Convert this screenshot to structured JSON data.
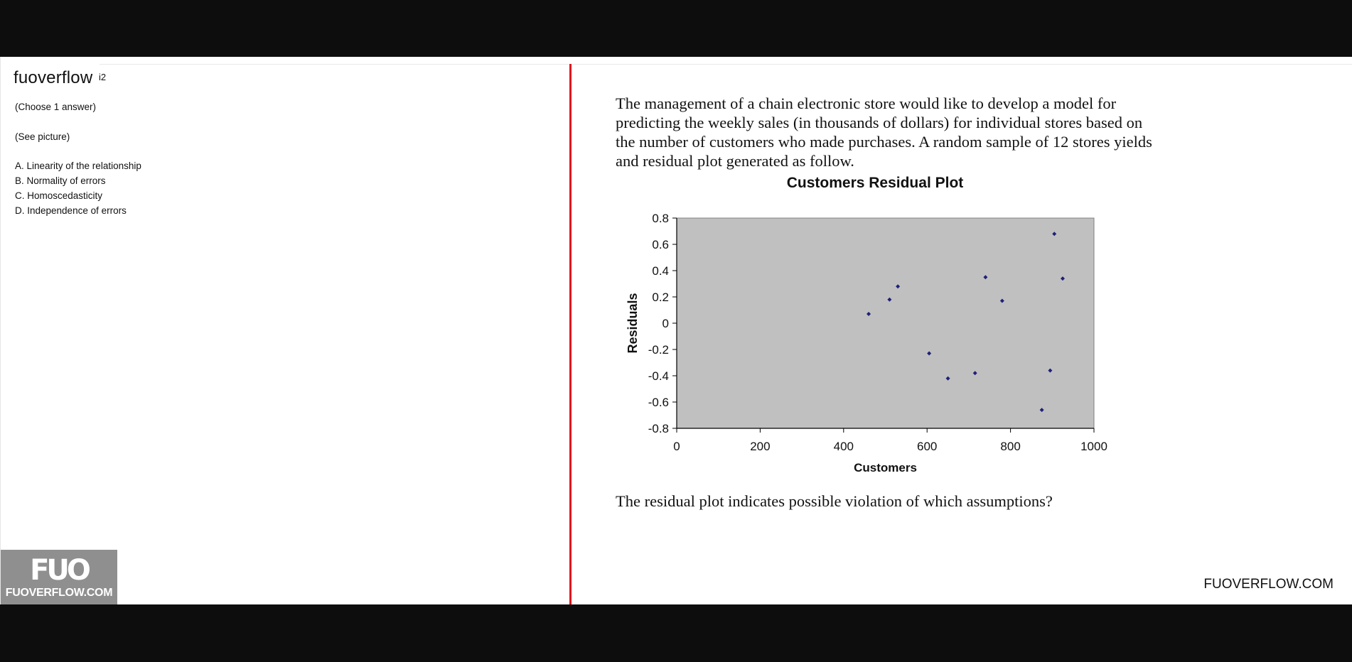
{
  "site": {
    "name": "fuoverflow",
    "suffix": "i2"
  },
  "left": {
    "instruction": "(Choose 1 answer)",
    "see_picture": "(See picture)",
    "options": [
      "A. Linearity of the relationship",
      "B. Normality of errors",
      "C. Homoscedasticity",
      "D. Independence of errors"
    ]
  },
  "right": {
    "intro": "The management of a chain electronic store would like to develop a model for predicting the weekly sales (in thousands of dollars) for individual stores based on the number of customers who made purchases. A random sample of 12 stores yields and residual plot generated as follow.",
    "question": "The residual plot indicates possible violation of which assumptions?"
  },
  "logo": {
    "mark": "FUO",
    "text": "FUOVERFLOW.COM"
  },
  "watermark": "FUOVERFLOW.COM",
  "colors": {
    "divider": "#e0141c",
    "plot_area": "#c0c0c0",
    "marker": "#1f1f7a",
    "logo_bg": "#8f8f8f"
  },
  "chart_data": {
    "type": "scatter",
    "title": "Customers  Residual Plot",
    "xlabel": "Customers",
    "ylabel": "Residuals",
    "xlim": [
      0,
      1000
    ],
    "ylim": [
      -0.8,
      0.8
    ],
    "xticks": [
      "0",
      "200",
      "400",
      "600",
      "800",
      "1000"
    ],
    "yticks": [
      "0.8",
      "0.6",
      "0.4",
      "0.2",
      "0",
      "-0.2",
      "-0.4",
      "-0.6",
      "-0.8"
    ],
    "grid": false,
    "points": [
      {
        "x": 460,
        "y": 0.07
      },
      {
        "x": 510,
        "y": 0.18
      },
      {
        "x": 530,
        "y": 0.28
      },
      {
        "x": 605,
        "y": -0.23
      },
      {
        "x": 650,
        "y": -0.42
      },
      {
        "x": 715,
        "y": -0.38
      },
      {
        "x": 740,
        "y": 0.35
      },
      {
        "x": 780,
        "y": 0.17
      },
      {
        "x": 875,
        "y": -0.66
      },
      {
        "x": 895,
        "y": -0.36
      },
      {
        "x": 905,
        "y": 0.68
      },
      {
        "x": 925,
        "y": 0.34
      }
    ]
  }
}
